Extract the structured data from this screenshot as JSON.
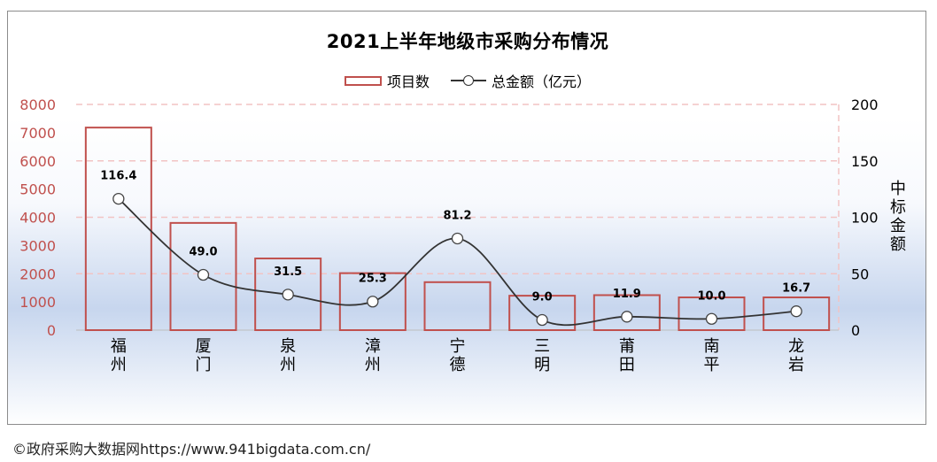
{
  "chart_data": {
    "type": "bar",
    "title": "2021上半年地级市采购分布情况",
    "categories": [
      "福州",
      "厦门",
      "泉州",
      "漳州",
      "宁德",
      "三明",
      "莆田",
      "南平",
      "龙岩"
    ],
    "series": [
      {
        "name": "项目数",
        "type": "bar",
        "axis": "left",
        "color": "#c0504d",
        "values": [
          7180,
          3800,
          2540,
          2020,
          1700,
          1220,
          1240,
          1160,
          1160
        ]
      },
      {
        "name": "总金额（亿元）",
        "type": "line",
        "axis": "right",
        "color": "#333333",
        "values": [
          116.4,
          49.0,
          31.5,
          25.3,
          81.2,
          9.0,
          11.9,
          10.0,
          16.7
        ],
        "data_labels": [
          "116.4",
          "49.0",
          "31.5",
          "25.3",
          "81.2",
          "9.0",
          "11.9",
          "10.0",
          "16.7"
        ]
      }
    ],
    "y_left": {
      "min": 0,
      "max": 8000,
      "ticks": [
        "0",
        "1000",
        "2000",
        "3000",
        "4000",
        "5000",
        "6000",
        "7000",
        "8000"
      ]
    },
    "y_right": {
      "min": 0,
      "max": 200,
      "ticks": [
        "0",
        "50",
        "100",
        "150",
        "200"
      ],
      "label": "中标金额"
    },
    "legend_position": "top-center",
    "grid": true
  },
  "footer": "©政府采购大数据网https://www.941bigdata.com.cn/"
}
